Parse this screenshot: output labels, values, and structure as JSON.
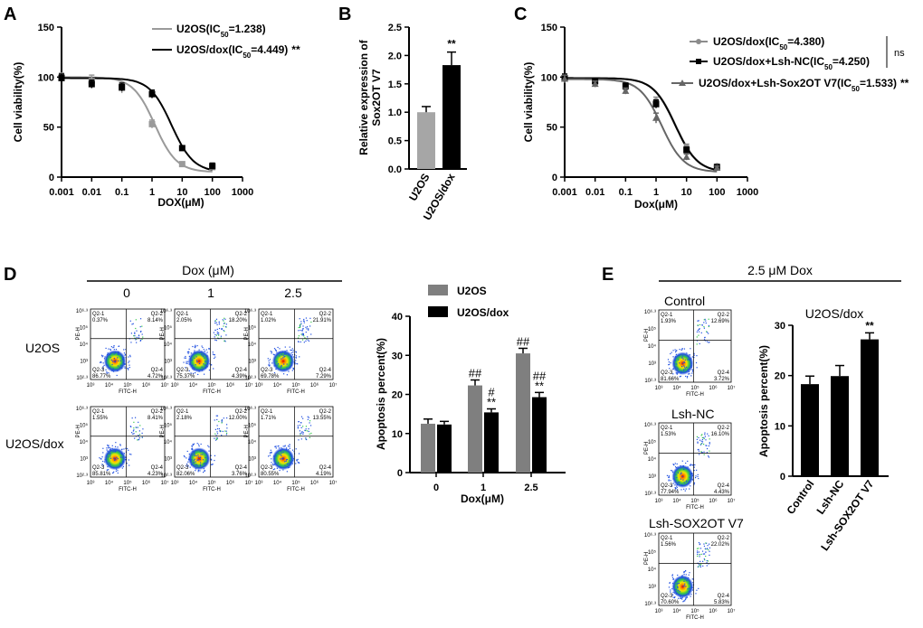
{
  "panels": {
    "A": "A",
    "B": "B",
    "C": "C",
    "D": "D",
    "E": "E"
  },
  "chart_data": [
    {
      "id": "A",
      "type": "scatter",
      "xscale": "log",
      "xticks": [
        "0.001",
        "0.01",
        "0.1",
        "1",
        "10",
        "100",
        "1000"
      ],
      "yticks": [
        "0",
        "50",
        "100",
        "150"
      ],
      "ylim": [
        0,
        150
      ],
      "xlabel": "DOX(μM)",
      "ylabel": "Cell viability(%)",
      "series": [
        {
          "name": "U2OS",
          "ic50_label": "1.238",
          "legend_prefix": "U2OS(IC",
          "legend_suffix": ")",
          "marker": "s",
          "color": "#9a9a9a",
          "x": [
            0.001,
            0.01,
            0.1,
            1,
            10,
            100
          ],
          "y": [
            100,
            96,
            89,
            53,
            13,
            10
          ],
          "err": [
            4,
            6,
            5,
            4,
            2,
            2
          ],
          "ic50": 1.238,
          "suffix": ""
        },
        {
          "name": "U2OS/dox",
          "ic50_label": "4.449",
          "legend_prefix": "U2OS/dox(IC",
          "legend_suffix": ")",
          "marker": "s",
          "color": "#000000",
          "x": [
            0.001,
            0.01,
            0.1,
            1,
            10,
            100
          ],
          "y": [
            99,
            93,
            90,
            83,
            29,
            11
          ],
          "err": [
            4,
            4,
            4,
            4,
            2,
            3
          ],
          "ic50": 4.449,
          "suffix": "**"
        }
      ]
    },
    {
      "id": "B",
      "type": "bar",
      "categories": [
        "U2OS",
        "U2OS/dox"
      ],
      "values": [
        1.0,
        1.83
      ],
      "errors": [
        0.1,
        0.23
      ],
      "colors": [
        "#a6a6a6",
        "#000000"
      ],
      "annotations": [
        "",
        "**"
      ],
      "ylim": [
        0,
        2.5
      ],
      "yticks": [
        "0.0",
        "0.5",
        "1.0",
        "1.5",
        "2.0",
        "2.5"
      ],
      "ylabel_lines": [
        "Relative expression of",
        "Sox2OT V7"
      ]
    },
    {
      "id": "C",
      "type": "scatter",
      "xscale": "log",
      "xticks": [
        "0.001",
        "0.01",
        "0.1",
        "1",
        "10",
        "100",
        "1000"
      ],
      "yticks": [
        "0",
        "50",
        "100",
        "150"
      ],
      "ylim": [
        0,
        150
      ],
      "xlabel": "Dox(μM)",
      "ylabel": "Cell viability(%)",
      "ns_label": "ns",
      "series": [
        {
          "name": "U2OS/dox",
          "legend_prefix": "U2OS/dox(IC",
          "legend_suffix": ")",
          "ic50_label": "4.380",
          "marker": "o",
          "color": "#8c8c8c",
          "x": [
            0.001,
            0.01,
            0.1,
            1,
            10,
            100
          ],
          "y": [
            99,
            94,
            89,
            76,
            30,
            11
          ],
          "err": [
            4,
            3,
            3,
            4,
            3,
            2
          ],
          "ic50": 4.38,
          "suffix": ""
        },
        {
          "name": "U2OS/dox+Lsh-NC",
          "legend_prefix": "U2OS/dox+Lsh-NC(IC",
          "legend_suffix": ")",
          "ic50_label": "4.250",
          "marker": "s",
          "color": "#000000",
          "x": [
            0.001,
            0.01,
            0.1,
            1,
            10,
            100
          ],
          "y": [
            99,
            96,
            91,
            73,
            27,
            10
          ],
          "err": [
            4,
            3,
            3,
            4,
            3,
            2
          ],
          "ic50": 4.25,
          "suffix": ""
        },
        {
          "name": "U2OS/dox+Lsh-Sox2OT V7",
          "legend_prefix": "U2OS/dox+Lsh-Sox2OT V7(IC",
          "legend_suffix": ")",
          "ic50_label": "1.533",
          "marker": "^",
          "color": "#666666",
          "x": [
            0.001,
            0.01,
            0.1,
            1,
            10,
            100
          ],
          "y": [
            98,
            93,
            86,
            59,
            20,
            9
          ],
          "err": [
            4,
            3,
            3,
            5,
            3,
            2
          ],
          "ic50": 1.533,
          "suffix": "**"
        }
      ]
    },
    {
      "id": "D",
      "type": "bar",
      "categories": [
        "0",
        "1",
        "2.5"
      ],
      "series": [
        {
          "name": "U2OS",
          "values": [
            12.5,
            22.3,
            30.5
          ],
          "errors": [
            1.2,
            1.4,
            1.3
          ],
          "color": "#7f7f7f",
          "annotations": [
            "",
            "##",
            "##"
          ]
        },
        {
          "name": "U2OS/dox",
          "values": [
            12.3,
            15.4,
            19.3
          ],
          "errors": [
            0.8,
            0.9,
            1.2
          ],
          "color": "#000000",
          "annotations": [
            "",
            "#\n**",
            "##\n**"
          ]
        }
      ],
      "ylim": [
        0,
        40
      ],
      "yticks": [
        "0",
        "10",
        "20",
        "30",
        "40"
      ],
      "xlabel": "Dox(μM)",
      "ylabel": "Apoptosis percent(%)"
    },
    {
      "id": "E",
      "type": "bar",
      "title": "U2OS/dox",
      "categories": [
        "Control",
        "Lsh-NC",
        "Lsh-SOX2OT V7"
      ],
      "values": [
        18.3,
        19.9,
        27.2
      ],
      "errors": [
        1.6,
        2.1,
        1.3
      ],
      "colors": [
        "#000000",
        "#000000",
        "#000000"
      ],
      "annotations": [
        "",
        "",
        "**"
      ],
      "ylim": [
        0,
        30
      ],
      "yticks": [
        "0",
        "10",
        "20",
        "30"
      ],
      "ylabel": "Apoptosis percent(%)"
    }
  ],
  "flow": {
    "D_header": "Dox (μM)",
    "D_cols": [
      "0",
      "1",
      "2.5"
    ],
    "D_rows": [
      "U2OS",
      "U2OS/dox"
    ],
    "E_header": "2.5 μM Dox",
    "E_rows": [
      "Control",
      "Lsh-NC",
      "Lsh-SOX2OT V7"
    ],
    "quad_labels": [
      "Q2-1",
      "Q2-2",
      "Q2-3",
      "Q2-4"
    ],
    "x_axis_label": "FITC-H",
    "y_axis_label": "PE-H",
    "x_ticks": [
      "10³",
      "10⁴",
      "10⁵",
      "10⁶",
      "10⁷"
    ],
    "y_ticks": [
      "10⁶·³",
      "10⁵",
      "10⁴",
      "10³",
      "10²·³"
    ],
    "plots": {
      "D": [
        [
          "0.37%",
          "8.14%",
          "86.77%",
          "4.72%"
        ],
        [
          "2.05%",
          "18.20%",
          "75.37%",
          "4.39%"
        ],
        [
          "1.02%",
          "21.91%",
          "69.78%",
          "7.29%"
        ],
        [
          "1.55%",
          "8.41%",
          "85.81%",
          "4.23%"
        ],
        [
          "2.18%",
          "12.00%",
          "82.06%",
          "3.76%"
        ],
        [
          "1.71%",
          "13.55%",
          "80.55%",
          "4.19%"
        ]
      ],
      "E": [
        [
          "1.93%",
          "12.69%",
          "81.66%",
          "3.72%"
        ],
        [
          "1.53%",
          "16.10%",
          "77.94%",
          "4.43%"
        ],
        [
          "1.56%",
          "22.02%",
          "70.60%",
          "5.83%"
        ]
      ]
    }
  }
}
